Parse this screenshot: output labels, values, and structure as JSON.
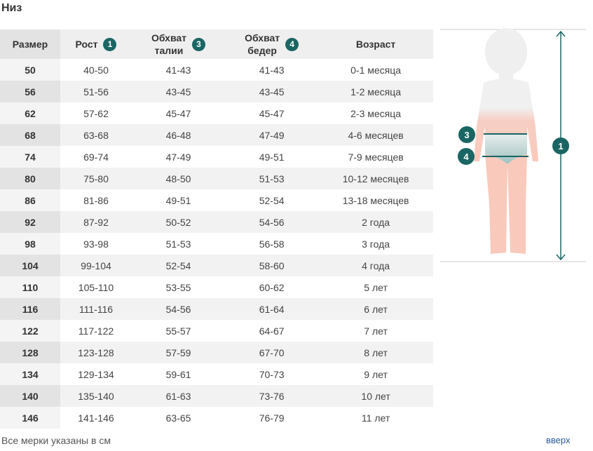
{
  "title": "Низ",
  "table": {
    "headers": [
      {
        "line1": "Размер",
        "line2": "",
        "badge": ""
      },
      {
        "line1": "Рост",
        "line2": "",
        "badge": "1"
      },
      {
        "line1": "Обхват",
        "line2": "талии",
        "badge": "3"
      },
      {
        "line1": "Обхват",
        "line2": "бедер",
        "badge": "4"
      },
      {
        "line1": "Возраст",
        "line2": "",
        "badge": ""
      }
    ],
    "rows": [
      [
        "50",
        "40-50",
        "41-43",
        "41-43",
        "0-1 месяца"
      ],
      [
        "56",
        "51-56",
        "43-45",
        "43-45",
        "1-2 месяца"
      ],
      [
        "62",
        "57-62",
        "45-47",
        "45-47",
        "2-3 месяца"
      ],
      [
        "68",
        "63-68",
        "46-48",
        "47-49",
        "4-6 месяцев"
      ],
      [
        "74",
        "69-74",
        "47-49",
        "49-51",
        "7-9 месяцев"
      ],
      [
        "80",
        "75-80",
        "48-50",
        "51-53",
        "10-12 месяцев"
      ],
      [
        "86",
        "81-86",
        "49-51",
        "52-54",
        "13-18 месяцев"
      ],
      [
        "92",
        "87-92",
        "50-52",
        "54-56",
        "2 года"
      ],
      [
        "98",
        "93-98",
        "51-53",
        "56-58",
        "3 года"
      ],
      [
        "104",
        "99-104",
        "52-54",
        "58-60",
        "4 года"
      ],
      [
        "110",
        "105-110",
        "53-55",
        "60-62",
        "5 лет"
      ],
      [
        "116",
        "111-116",
        "54-56",
        "61-64",
        "6 лет"
      ],
      [
        "122",
        "117-122",
        "55-57",
        "64-67",
        "7 лет"
      ],
      [
        "128",
        "123-128",
        "57-59",
        "67-70",
        "8 лет"
      ],
      [
        "134",
        "129-134",
        "59-61",
        "70-73",
        "9 лет"
      ],
      [
        "140",
        "135-140",
        "61-63",
        "73-76",
        "10 лет"
      ],
      [
        "146",
        "141-146",
        "63-65",
        "76-79",
        "11 лет"
      ]
    ]
  },
  "figure": {
    "badges": [
      "3",
      "4",
      "1"
    ],
    "accent": "#1a6664"
  },
  "footer": {
    "note": "Все мерки указаны в см",
    "up_link": "вверх"
  }
}
